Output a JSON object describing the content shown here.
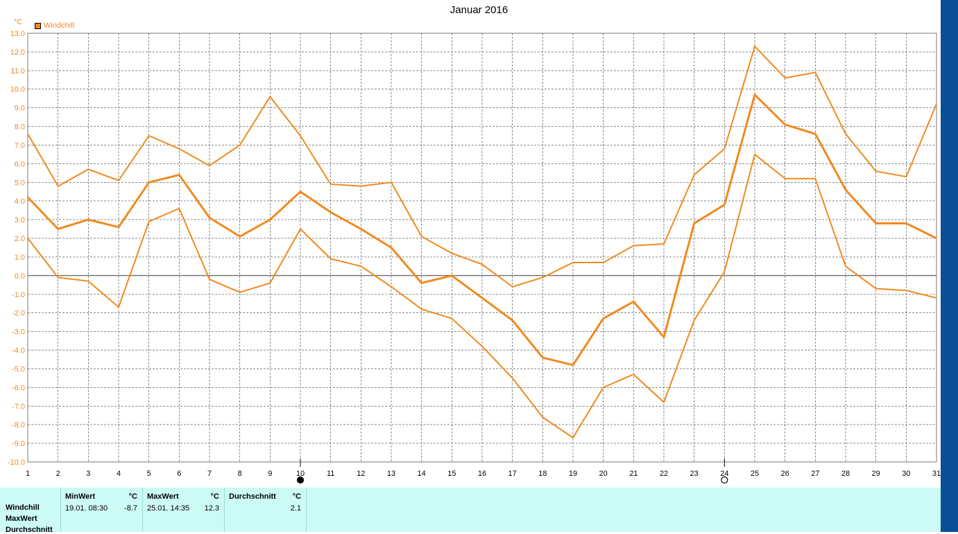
{
  "colors": {
    "series": "#f08a1e",
    "axis_text": "#f08a1e",
    "grid": "#8a8a8a",
    "panel_bg": "#ccfaf5",
    "right_strip": "#0a4f96"
  },
  "chart_data": {
    "type": "line",
    "title": "Januar 2016",
    "ylabel": "°C",
    "ylim": [
      -10,
      13
    ],
    "ytick_step": 1,
    "grid": true,
    "legend": {
      "placement": "top-left",
      "entries": [
        "Windchill"
      ]
    },
    "x": [
      1,
      2,
      3,
      4,
      5,
      6,
      7,
      8,
      9,
      10,
      11,
      12,
      13,
      14,
      15,
      16,
      17,
      18,
      19,
      20,
      21,
      22,
      23,
      24,
      25,
      26,
      27,
      28,
      29,
      30,
      31
    ],
    "x_markers": [
      {
        "day": 10,
        "style": "filled-circle"
      },
      {
        "day": 24,
        "style": "open-circle"
      }
    ],
    "series": [
      {
        "role": "max",
        "values": [
          7.6,
          4.8,
          5.7,
          5.1,
          7.5,
          6.8,
          5.9,
          7.0,
          9.6,
          7.5,
          4.9,
          4.8,
          5.0,
          2.1,
          1.2,
          0.6,
          -0.6,
          -0.1,
          0.7,
          0.7,
          1.6,
          1.7,
          5.4,
          6.8,
          12.3,
          10.6,
          10.9,
          7.6,
          5.6,
          5.3,
          9.2
        ]
      },
      {
        "role": "avg",
        "values": [
          4.2,
          2.5,
          3.0,
          2.6,
          5.0,
          5.4,
          3.1,
          2.1,
          3.0,
          4.5,
          3.4,
          2.5,
          1.5,
          -0.4,
          0.0,
          -1.2,
          -2.4,
          -4.4,
          -4.8,
          -2.3,
          -1.4,
          -3.3,
          2.8,
          3.8,
          9.7,
          8.1,
          7.6,
          4.6,
          2.8,
          2.8,
          2.0
        ]
      },
      {
        "role": "min",
        "values": [
          2.0,
          -0.1,
          -0.3,
          -1.7,
          2.9,
          3.6,
          -0.2,
          -0.9,
          -0.4,
          2.5,
          0.9,
          0.5,
          -0.6,
          -1.8,
          -2.3,
          -3.8,
          -5.5,
          -7.6,
          -8.7,
          -6.0,
          -5.3,
          -6.8,
          -2.4,
          0.2,
          6.5,
          5.2,
          5.2,
          0.5,
          -0.7,
          -0.8,
          -1.2
        ]
      }
    ]
  },
  "stats": {
    "row_labels": [
      "Windchill",
      "MaxWert",
      "Durchschnitt"
    ],
    "columns": [
      {
        "header": "MinWert",
        "unit": "°C",
        "date": "19.01.  08:30",
        "value": "-8.7"
      },
      {
        "header": "MaxWert",
        "unit": "°C",
        "date": "25.01.  14:35",
        "value": "12.3"
      },
      {
        "header": "Durchschnitt",
        "unit": "°C",
        "date": "",
        "value": "2.1"
      }
    ]
  }
}
